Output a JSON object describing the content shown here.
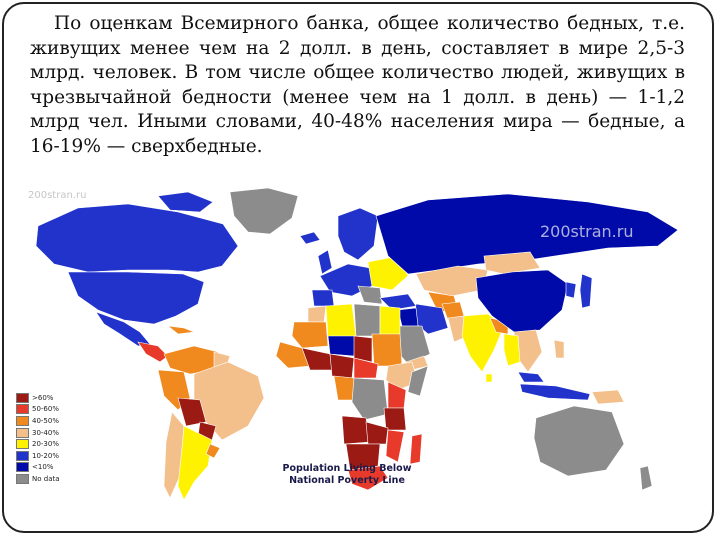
{
  "slide": {
    "paragraph": "По оценкам Всемирного банка, общее количество бедных, т.е. живущих менее чем на 2 долл. в день, составляет в мире 2,5-3 млрд. человек. В том числе общее количество людей, живущих в чрезвычайной бедности (менее чем на 1 долл. в день) — 1-1,2 млрд чел. Иными словами, 40-48% населения мира — бедные, а 16-19% — сверхбедные."
  },
  "map": {
    "title_line1": "Population Living Below",
    "title_line2": "National Poverty Line",
    "watermark_left": "200stran.ru",
    "watermark_right": "200stran.ru",
    "legend": [
      {
        "label": ">60%",
        "color": "#9b1a14"
      },
      {
        "label": "50-60%",
        "color": "#e83a2a"
      },
      {
        "label": "40-50%",
        "color": "#f08a1e"
      },
      {
        "label": "30-40%",
        "color": "#f3c08c"
      },
      {
        "label": "20-30%",
        "color": "#fff200"
      },
      {
        "label": "10-20%",
        "color": "#2233cc"
      },
      {
        "label": "<10%",
        "color": "#000aa8"
      },
      {
        "label": "No data",
        "color": "#8c8c8c"
      }
    ]
  }
}
